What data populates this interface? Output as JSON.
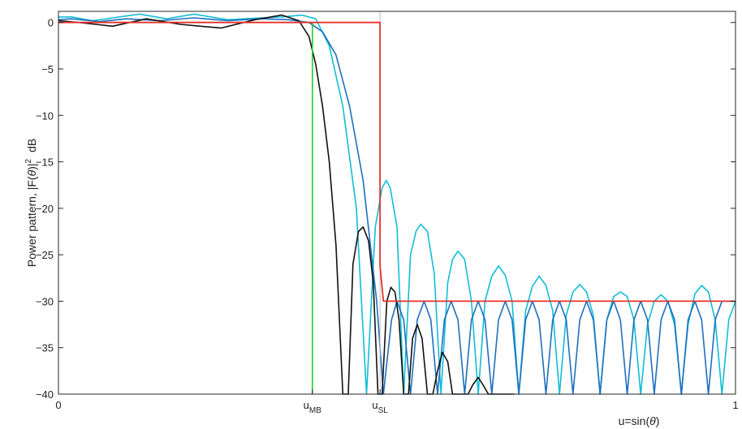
{
  "chart_data": {
    "type": "line",
    "ylabel_pre": "Power pattern, |F(",
    "ylabel_theta": "θ",
    "ylabel_mid": ")|",
    "ylabel_sup": "2",
    "ylabel_post": "dB",
    "xlabel_pre": "u=sin(",
    "xlabel_theta": "θ",
    "xlabel_post": ")",
    "xlim": [
      0,
      1
    ],
    "ylim": [
      -40,
      1.2
    ],
    "grid": false,
    "y_ticks": [
      {
        "value": 0,
        "label": "0"
      },
      {
        "value": -5,
        "label": "−5"
      },
      {
        "value": -10,
        "label": "−10"
      },
      {
        "value": -15,
        "label": "−15"
      },
      {
        "value": -20,
        "label": "−20"
      },
      {
        "value": -25,
        "label": "−25"
      },
      {
        "value": -30,
        "label": "−30"
      },
      {
        "value": -35,
        "label": "−35"
      },
      {
        "value": -40,
        "label": "−40"
      }
    ],
    "x_ticks": [
      {
        "value": 0,
        "label": "0",
        "sub": ""
      },
      {
        "value": 0.375,
        "label": "u",
        "sub": "MB"
      },
      {
        "value": 0.475,
        "label": "u",
        "sub": "SL"
      },
      {
        "value": 1,
        "label": "1",
        "sub": ""
      }
    ],
    "mainbeam_edge": 0.375,
    "sidelobe_edge": 0.475,
    "mask": {
      "color": "#e8302c",
      "x": [
        0,
        0.475,
        0.475,
        0.48,
        1.0
      ],
      "y": [
        0,
        0,
        -26.2,
        -30,
        -30
      ]
    },
    "mainbeam_marker": {
      "color": "#22d12a",
      "x": [
        0,
        0.375,
        0.375
      ],
      "y": [
        0,
        0,
        -40
      ]
    },
    "series": [
      {
        "color": "#11bdd6",
        "x": [
          0,
          0.02,
          0.05,
          0.08,
          0.12,
          0.16,
          0.2,
          0.25,
          0.3,
          0.33,
          0.36,
          0.38,
          0.4,
          0.42,
          0.44,
          0.455,
          0.468,
          0.478,
          0.484,
          0.49,
          0.5,
          0.51,
          0.52,
          0.528,
          0.535,
          0.545,
          0.555,
          0.565,
          0.575,
          0.582,
          0.59,
          0.6,
          0.61,
          0.62,
          0.63,
          0.64,
          0.65,
          0.66,
          0.67,
          0.68,
          0.69,
          0.7,
          0.71,
          0.72,
          0.73,
          0.74,
          0.75,
          0.76,
          0.77,
          0.78,
          0.79,
          0.8,
          0.81,
          0.82,
          0.83,
          0.84,
          0.85,
          0.86,
          0.87,
          0.88,
          0.89,
          0.9,
          0.91,
          0.92,
          0.93,
          0.94,
          0.95,
          0.96,
          0.97,
          0.98,
          0.99,
          1.0
        ],
        "y": [
          0.6,
          0.6,
          0.2,
          0.5,
          0.9,
          0.4,
          0.9,
          0.3,
          0.5,
          0.6,
          0.8,
          0.4,
          -2.5,
          -9.0,
          -20.0,
          -40,
          -22.0,
          -17.8,
          -17.0,
          -17.8,
          -22.0,
          -40,
          -25.0,
          -22.5,
          -21.7,
          -22.5,
          -27.0,
          -40,
          -28.0,
          -25.5,
          -24.6,
          -25.5,
          -30.0,
          -40,
          -30.0,
          -27.3,
          -26.2,
          -27.2,
          -30.0,
          -40,
          -31.0,
          -28.4,
          -27.3,
          -28.3,
          -31.0,
          -40,
          -31.5,
          -29.0,
          -28.2,
          -29.0,
          -31.5,
          -40,
          -32.0,
          -29.5,
          -29.0,
          -29.5,
          -32.0,
          -40,
          -32.5,
          -30.0,
          -29.3,
          -30.0,
          -32.5,
          -40,
          -32.5,
          -29.2,
          -28.3,
          -29.0,
          -32.0,
          -40,
          -32.0,
          -30.0
        ]
      },
      {
        "color": "#1f6fbd",
        "x": [
          0,
          0.02,
          0.06,
          0.1,
          0.15,
          0.2,
          0.25,
          0.3,
          0.34,
          0.37,
          0.39,
          0.41,
          0.43,
          0.45,
          0.47,
          0.48,
          0.492,
          0.5,
          0.51,
          0.52,
          0.53,
          0.54,
          0.55,
          0.56,
          0.57,
          0.58,
          0.59,
          0.6,
          0.61,
          0.62,
          0.63,
          0.64,
          0.65,
          0.66,
          0.67,
          0.68,
          0.69,
          0.7,
          0.71,
          0.72,
          0.73,
          0.74,
          0.75,
          0.76,
          0.77,
          0.78,
          0.79,
          0.8,
          0.81,
          0.82,
          0.83,
          0.84,
          0.85,
          0.86,
          0.87,
          0.88,
          0.89,
          0.9,
          0.91,
          0.92,
          0.93,
          0.94,
          0.95,
          0.96,
          0.97,
          0.98,
          0.99,
          1.0
        ],
        "y": [
          0.3,
          0.4,
          0.1,
          0.4,
          0.2,
          0.5,
          0.2,
          0.4,
          0.3,
          0.0,
          -1.0,
          -3.5,
          -9.0,
          -17.0,
          -30.0,
          -40,
          -32.0,
          -30.0,
          -32.0,
          -40,
          -32.0,
          -30.0,
          -32.0,
          -40,
          -32.0,
          -30.0,
          -32.0,
          -40,
          -32.0,
          -30.0,
          -32.0,
          -40,
          -32.0,
          -30.0,
          -32.0,
          -40,
          -32.0,
          -30.0,
          -32.0,
          -40,
          -32.0,
          -30.0,
          -32.0,
          -40,
          -32.0,
          -30.0,
          -32.0,
          -40,
          -32.0,
          -30.0,
          -32.0,
          -40,
          -32.0,
          -30.0,
          -32.0,
          -40,
          -32.0,
          -30.0,
          -32.0,
          -40,
          -32.0,
          -30.0,
          -32.0,
          -40,
          -32.0,
          -30.0,
          -30.0,
          -30.0
        ]
      },
      {
        "color": "#111111",
        "x": [
          0,
          0.03,
          0.08,
          0.13,
          0.18,
          0.24,
          0.29,
          0.33,
          0.355,
          0.37,
          0.38,
          0.39,
          0.4,
          0.41,
          0.42,
          0.428,
          0.435,
          0.443,
          0.45,
          0.458,
          0.465,
          0.472,
          0.478,
          0.485,
          0.491,
          0.497,
          0.503,
          0.51,
          0.517,
          0.523,
          0.53,
          0.537,
          0.545,
          0.553,
          0.56,
          0.567,
          0.575,
          0.582,
          0.59,
          0.597,
          0.605,
          0.612,
          0.62,
          0.627,
          0.635,
          0.643,
          0.65,
          0.657,
          0.665,
          0.673
        ],
        "y": [
          0.2,
          0.0,
          -0.4,
          0.4,
          -0.2,
          -0.6,
          0.3,
          0.8,
          0.2,
          -1.5,
          -4.5,
          -9.0,
          -15.0,
          -24.0,
          -40,
          -40,
          -26.0,
          -22.5,
          -22.0,
          -23.5,
          -28.0,
          -40,
          -40,
          -30.0,
          -28.5,
          -29.0,
          -32.0,
          -40,
          -40,
          -34.0,
          -32.5,
          -34.0,
          -40,
          -40,
          -37.5,
          -35.5,
          -36.5,
          -40,
          -40,
          -40,
          -40,
          -39.0,
          -38.2,
          -39.0,
          -40,
          -40,
          -40,
          -40,
          -40,
          -40
        ]
      }
    ]
  }
}
